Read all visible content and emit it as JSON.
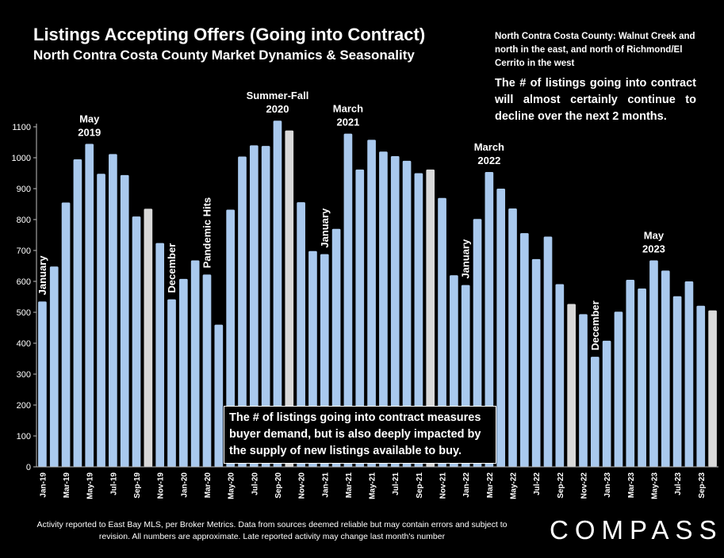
{
  "header": {
    "title": "Listings Accepting Offers (Going into Contract)",
    "subtitle": "North Contra Costa County Market Dynamics & Seasonality"
  },
  "notes": {
    "region": "North Contra Costa County: Walnut Creek and north in the east, and north of Richmond/El Cerrito in the west",
    "forecast": "The # of listings going into contract will almost certainly continue to decline over the next 2 months.",
    "demand": "The # of listings going into contract measures buyer demand, but is also deeply impacted by the supply of new listings available to buy."
  },
  "footer": {
    "note": "Activity reported to East Bay MLS, per Broker Metrics. Data from sources deemed reliable but may contain errors and subject to revision. All numbers are approximate. Late reported activity may change last month's number",
    "brand": "COMPASS"
  },
  "chart_data": {
    "type": "bar",
    "title": "Listings Accepting Offers (Going into Contract)",
    "ylim": [
      0,
      1100
    ],
    "yticks": [
      0,
      100,
      200,
      300,
      400,
      500,
      600,
      700,
      800,
      900,
      1000,
      1100
    ],
    "grid": false,
    "colors": {
      "bar": "#a9c9ee",
      "highlight": "#d9d9d9"
    },
    "categories": [
      "Jan-19",
      "Feb-19",
      "Mar-19",
      "Apr-19",
      "May-19",
      "Jun-19",
      "Jul-19",
      "Aug-19",
      "Sep-19",
      "Oct-19",
      "Nov-19",
      "Dec-19",
      "Jan-20",
      "Feb-20",
      "Mar-20",
      "Apr-20",
      "May-20",
      "Jun-20",
      "Jul-20",
      "Aug-20",
      "Sep-20",
      "Oct-20",
      "Nov-20",
      "Dec-20",
      "Jan-21",
      "Feb-21",
      "Mar-21",
      "Apr-21",
      "May-21",
      "Jun-21",
      "Jul-21",
      "Aug-21",
      "Sep-21",
      "Oct-21",
      "Nov-21",
      "Dec-21",
      "Jan-22",
      "Feb-22",
      "Mar-22",
      "Apr-22",
      "May-22",
      "Jun-22",
      "Jul-22",
      "Aug-22",
      "Sep-22",
      "Oct-22",
      "Nov-22",
      "Dec-22",
      "Jan-23",
      "Feb-23",
      "Mar-23",
      "Apr-23",
      "May-23",
      "Jun-23",
      "Jul-23",
      "Aug-23",
      "Sep-23",
      "Oct-23"
    ],
    "values": [
      535,
      648,
      855,
      995,
      1045,
      948,
      1012,
      944,
      810,
      835,
      724,
      542,
      608,
      668,
      622,
      460,
      832,
      1004,
      1040,
      1038,
      1120,
      1088,
      856,
      698,
      688,
      770,
      1078,
      962,
      1058,
      1020,
      1005,
      990,
      950,
      962,
      870,
      620,
      588,
      802,
      954,
      900,
      836,
      756,
      672,
      745,
      591,
      527,
      494,
      356,
      408,
      502,
      605,
      577,
      668,
      635,
      552,
      600,
      521,
      506
    ],
    "highlighted": [
      "Oct-19",
      "Oct-20",
      "Oct-21",
      "Oct-22",
      "Oct-23"
    ],
    "xtick_labels": [
      "Jan-19",
      "Mar-19",
      "May-19",
      "Jul-19",
      "Sep-19",
      "Nov-19",
      "Jan-20",
      "Mar-20",
      "May-20",
      "Jul-20",
      "Sep-20",
      "Nov-20",
      "Jan-21",
      "Mar-21",
      "May-21",
      "Jul-21",
      "Sep-21",
      "Nov-21",
      "Jan-22",
      "Mar-22",
      "May-22",
      "Jul-22",
      "Sep-22",
      "Nov-22",
      "Jan-23",
      "Mar-23",
      "May-23",
      "Jul-23",
      "Sep-23"
    ],
    "annotations": [
      {
        "category": "Jan-19",
        "lines": [
          "January"
        ],
        "rotated": true
      },
      {
        "category": "May-19",
        "lines": [
          "May",
          "2019"
        ],
        "rotated": false
      },
      {
        "category": "Dec-19",
        "lines": [
          "December"
        ],
        "rotated": true
      },
      {
        "category": "Mar-20",
        "lines": [
          "Pandemic Hits"
        ],
        "rotated": true
      },
      {
        "category": "Sep-20",
        "lines": [
          "Summer-Fall",
          "2020"
        ],
        "rotated": false
      },
      {
        "category": "Jan-21",
        "lines": [
          "January"
        ],
        "rotated": true
      },
      {
        "category": "Mar-21",
        "lines": [
          "March",
          "2021"
        ],
        "rotated": false
      },
      {
        "category": "Jan-22",
        "lines": [
          "January"
        ],
        "rotated": true
      },
      {
        "category": "Mar-22",
        "lines": [
          "March",
          "2022"
        ],
        "rotated": false
      },
      {
        "category": "Dec-22",
        "lines": [
          "December"
        ],
        "rotated": true
      },
      {
        "category": "May-23",
        "lines": [
          "May",
          "2023"
        ],
        "rotated": false
      }
    ]
  }
}
